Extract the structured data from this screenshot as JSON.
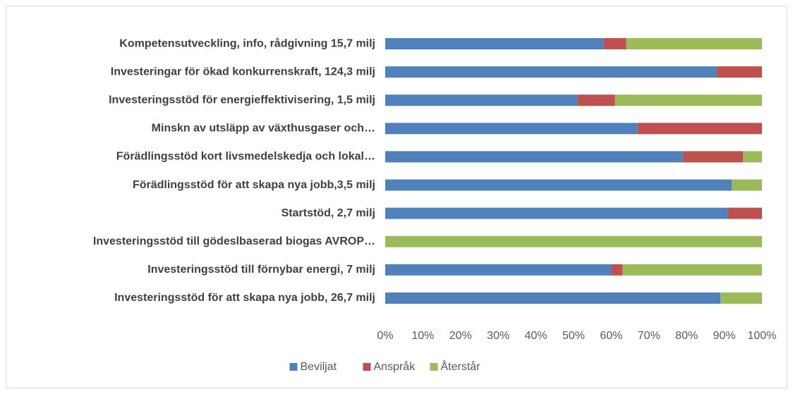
{
  "chart_data": {
    "type": "stacked_bar_horizontal",
    "categories": [
      "Kompetensutveckling, info, rådgivning 15,7 milj",
      "Investeringar för ökad konkurrenskraft, 124,3 milj",
      "Investeringsstöd för energieffektivisering, 1,5 milj",
      "Minskn av utsläpp av växthusgaser och…",
      "Förädlingsstöd kort livsmedelskedja och lokal…",
      "Förädlingsstöd för att skapa nya jobb,3,5 milj",
      "Startstöd, 2,7 milj",
      "Investeringsstöd till gödeslbaserad biogas AVROP…",
      "Investeringsstöd till förnybar energi, 7 milj",
      "Investeringsstöd för att skapa nya jobb, 26,7 milj"
    ],
    "series": [
      {
        "name": "Beviljat",
        "color": "#4f81bd",
        "values": [
          58,
          88,
          51,
          67,
          79,
          92,
          91,
          0,
          60,
          89
        ]
      },
      {
        "name": "Anspråk",
        "color": "#c0504d",
        "values": [
          6,
          12,
          10,
          33,
          16,
          0,
          9,
          0,
          3,
          0
        ]
      },
      {
        "name": "Återstår",
        "color": "#9bbb59",
        "values": [
          36,
          0,
          39,
          0,
          5,
          8,
          0,
          100,
          37,
          11
        ]
      }
    ],
    "xlim": [
      0,
      100
    ],
    "xticks": [
      {
        "value": 0,
        "label": "0%"
      },
      {
        "value": 10,
        "label": "10%"
      },
      {
        "value": 20,
        "label": "20%"
      },
      {
        "value": 30,
        "label": "30%"
      },
      {
        "value": 40,
        "label": "40%"
      },
      {
        "value": 50,
        "label": "50%"
      },
      {
        "value": 60,
        "label": "60%"
      },
      {
        "value": 70,
        "label": "70%"
      },
      {
        "value": 80,
        "label": "80%"
      },
      {
        "value": 90,
        "label": "90%"
      },
      {
        "value": 100,
        "label": "100%"
      }
    ],
    "grid": false,
    "legend": "bottom"
  }
}
